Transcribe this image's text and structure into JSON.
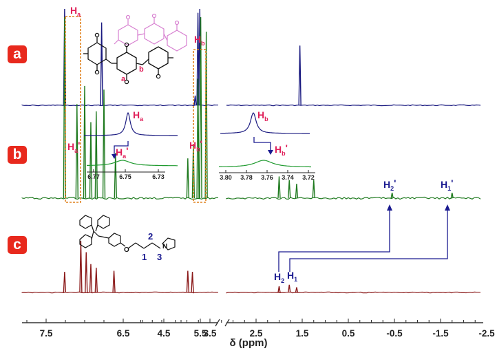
{
  "chart_data": {
    "type": "line",
    "xlabel": "δ (ppm)",
    "x_ticks": [
      "7.5",
      "6.5",
      "5.5",
      "4.5",
      "3.5",
      "2.5",
      "1.5",
      "0.5",
      "-0.5",
      "-1.5",
      "-2.5"
    ],
    "xlim": [
      7.9,
      -2.7
    ],
    "axis_break_ppm": 5.25,
    "panels": [
      {
        "badge": "a",
        "color": "#1a1a80",
        "peaks": [
          {
            "ppm": 7.26,
            "h": 1.0
          },
          {
            "ppm": 6.78,
            "h": 0.86
          },
          {
            "ppm": 3.82,
            "h": 0.1
          },
          {
            "ppm": 3.76,
            "h": 0.96
          },
          {
            "ppm": 3.72,
            "h": 1.0
          },
          {
            "ppm": 1.55,
            "h": 0.62
          }
        ]
      },
      {
        "badge": "b",
        "color": "#1f7a1f",
        "peaks": [
          {
            "ppm": 7.26,
            "h": 1.0
          },
          {
            "ppm": 7.1,
            "h": 0.52
          },
          {
            "ppm": 7.0,
            "h": 0.62
          },
          {
            "ppm": 6.92,
            "h": 0.42
          },
          {
            "ppm": 6.85,
            "h": 0.48
          },
          {
            "ppm": 6.75,
            "h": 0.6
          },
          {
            "ppm": 6.6,
            "h": 0.25
          },
          {
            "ppm": 3.98,
            "h": 0.22
          },
          {
            "ppm": 3.86,
            "h": 0.3
          },
          {
            "ppm": 3.76,
            "h": 0.66
          },
          {
            "ppm": 3.7,
            "h": 1.0
          },
          {
            "ppm": 3.58,
            "h": 0.92
          },
          {
            "ppm": 2.0,
            "h": 0.12
          },
          {
            "ppm": 1.78,
            "h": 0.1
          },
          {
            "ppm": 1.62,
            "h": 0.08
          },
          {
            "ppm": 1.25,
            "h": 0.1
          },
          {
            "ppm": -0.45,
            "h": 0.03
          },
          {
            "ppm": -1.75,
            "h": 0.03
          }
        ]
      },
      {
        "badge": "c",
        "color": "#8b1a1a",
        "peaks": [
          {
            "ppm": 7.26,
            "h": 0.4
          },
          {
            "ppm": 7.05,
            "h": 1.0
          },
          {
            "ppm": 6.98,
            "h": 0.78
          },
          {
            "ppm": 6.92,
            "h": 0.55
          },
          {
            "ppm": 6.85,
            "h": 0.48
          },
          {
            "ppm": 6.62,
            "h": 0.42
          },
          {
            "ppm": 3.98,
            "h": 0.42
          },
          {
            "ppm": 3.88,
            "h": 0.4
          },
          {
            "ppm": 2.0,
            "h": 0.12
          },
          {
            "ppm": 1.78,
            "h": 0.15
          },
          {
            "ppm": 1.62,
            "h": 0.1
          }
        ]
      }
    ],
    "insets": [
      {
        "panel": "a",
        "label": "Ha",
        "ticks": [
          "6.77",
          "6.75",
          "6.73"
        ]
      },
      {
        "panel": "b",
        "label": "Hb",
        "ticks": [
          "3.80",
          "3.78",
          "3.76",
          "3.74",
          "3.72"
        ]
      }
    ]
  },
  "labels": {
    "ha": {
      "main": "H",
      "sub": "a"
    },
    "hb": {
      "main": "H",
      "sub": "b"
    },
    "ha_prime": {
      "main": "H",
      "sub": "a",
      "mark": "'"
    },
    "hb_prime": {
      "main": "H",
      "sub": "b",
      "mark": "'"
    },
    "h1_prime": {
      "main": "H",
      "sub": "1",
      "mark": "'"
    },
    "h2_prime": {
      "main": "H",
      "sub": "2",
      "mark": "'"
    },
    "h2": {
      "main": "H",
      "sub": "2"
    },
    "h1": {
      "main": "H",
      "sub": "1"
    },
    "bond_a": "a",
    "bond_b": "b",
    "chain_1": "1",
    "chain_2": "2",
    "chain_3": "3",
    "imid_n": "N"
  },
  "colors": {
    "badge": "#e8291d",
    "pink": "#e0205a",
    "blue": "#1a1a90",
    "orange": "#e0821e",
    "axis": "#333333"
  }
}
